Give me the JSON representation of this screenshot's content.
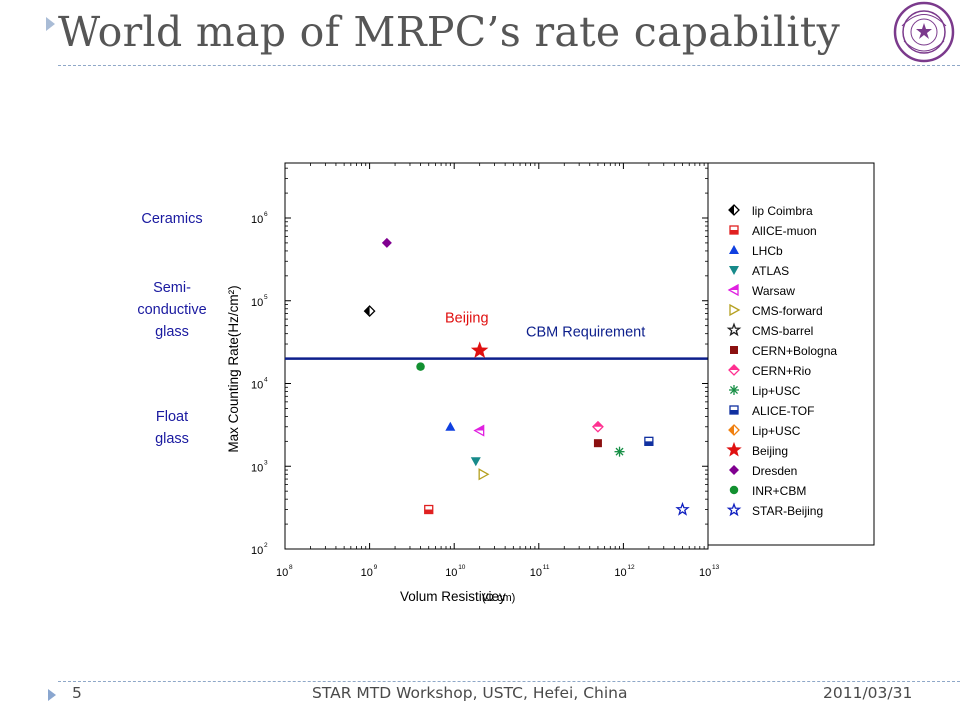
{
  "slide": {
    "title": "World map of MRPC’s rate capability",
    "footer": {
      "page_number": "5",
      "center_text": "STAR MTD Workshop, USTC, Hefei, China",
      "date": "2011/03/31"
    }
  },
  "chart_data": {
    "type": "scatter",
    "xlabel": "Volum Resistiviey",
    "xlabel_unit": "(Ω cm)",
    "ylabel": "Max Counting Rate(Hz/cm²)",
    "x_scale": "log",
    "y_scale": "log",
    "xlim": [
      100000000,
      10000000000000
    ],
    "ylim": [
      100,
      5000000
    ],
    "x_ticks": [
      {
        "base": "10",
        "exp": "8"
      },
      {
        "base": "10",
        "exp": "9"
      },
      {
        "base": "10",
        "exp": "10"
      },
      {
        "base": "10",
        "exp": "11"
      },
      {
        "base": "10",
        "exp": "12"
      },
      {
        "base": "10",
        "exp": "13"
      }
    ],
    "y_ticks": [
      {
        "base": "10",
        "exp": "2"
      },
      {
        "base": "10",
        "exp": "3"
      },
      {
        "base": "10",
        "exp": "4"
      },
      {
        "base": "10",
        "exp": "5"
      },
      {
        "base": "10",
        "exp": "6"
      }
    ],
    "legend_position": "right",
    "series": [
      {
        "name": "lip Coimbra",
        "marker": "half-diamond",
        "color": "#000000",
        "x": 1000000000,
        "y": 75000
      },
      {
        "name": "AlICE-muon",
        "marker": "half-square",
        "color": "#e02020",
        "x": 5000000000,
        "y": 300
      },
      {
        "name": "LHCb",
        "marker": "triangle-up",
        "color": "#1040e0",
        "x": 9000000000,
        "y": 3000
      },
      {
        "name": "ATLAS",
        "marker": "triangle-down",
        "color": "#178a8a",
        "x": 18000000000,
        "y": 1150
      },
      {
        "name": "Warsaw",
        "marker": "triangle-left",
        "color": "#e020e0",
        "x": 20000000000,
        "y": 2700
      },
      {
        "name": "CMS-forward",
        "marker": "triangle-right",
        "color": "#b5a020",
        "x": 22000000000,
        "y": 800
      },
      {
        "name": "CMS-barrel",
        "marker": "star-half",
        "color": "#202020",
        "x": null,
        "y": null
      },
      {
        "name": "CERN+Bologna",
        "marker": "square",
        "color": "#8b1010",
        "x": 500000000000,
        "y": 1900
      },
      {
        "name": "CERN+Rio",
        "marker": "half-diamond-pink",
        "color": "#ff3090",
        "x": 500000000000,
        "y": 3000
      },
      {
        "name": "Lip+USC",
        "marker": "asterisk",
        "color": "#168f45",
        "x": 900000000000,
        "y": 1500
      },
      {
        "name": "ALICE-TOF",
        "marker": "half-square",
        "color": "#1030a0",
        "x": 2000000000000,
        "y": 2000
      },
      {
        "name": "Lip+USC",
        "marker": "half-diamond-orange",
        "color": "#f08010",
        "x": null,
        "y": null
      },
      {
        "name": "Beijing",
        "marker": "star",
        "color": "#e01010",
        "x": 20000000000,
        "y": 25000
      },
      {
        "name": "Dresden",
        "marker": "diamond",
        "color": "#800090",
        "x": 1600000000,
        "y": 500000
      },
      {
        "name": "INR+CBM",
        "marker": "circle",
        "color": "#129030",
        "x": 4000000000,
        "y": 16000
      },
      {
        "name": "STAR-Beijing",
        "marker": "star-open",
        "color": "#1020c0",
        "x": 5000000000000,
        "y": 300
      }
    ],
    "reference_line": {
      "label": "CBM Requirement",
      "y": 20000,
      "color": "#0d1f8c"
    },
    "annotations": [
      {
        "text": "Beijing",
        "color": "#e01010"
      }
    ],
    "category_labels": [
      {
        "text": "Ceramics",
        "y": 1000000
      },
      {
        "text": "Semi-\nconductive\nglass",
        "y": 80000
      },
      {
        "text": "Float\nglass",
        "y": 3000
      }
    ]
  },
  "colors": {
    "category_text": "#1a1aa0",
    "cbm_line": "#0d1f8c",
    "title": "#565656"
  }
}
